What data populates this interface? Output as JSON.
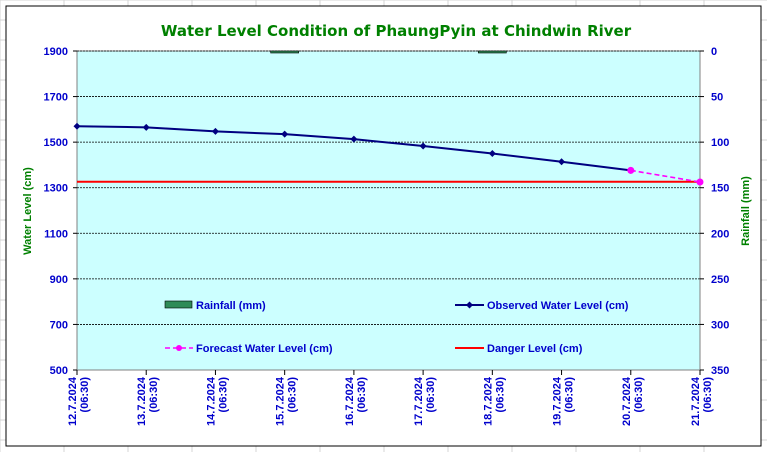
{
  "chart_data": {
    "type": "line",
    "title": "Water Level Condition of PhaungPyin at Chindwin River",
    "ylabel": "Water Level (cm)",
    "y2label": "Rainfall (mm)",
    "ylim": [
      500,
      1900
    ],
    "y2lim": [
      0,
      350
    ],
    "y2_inverted": true,
    "yticks": [
      500,
      700,
      900,
      1100,
      1300,
      1500,
      1700,
      1900
    ],
    "y2ticks": [
      0,
      50,
      100,
      150,
      200,
      250,
      300,
      350
    ],
    "categories": [
      {
        "date": "12.7.2024",
        "time": "(06:30)"
      },
      {
        "date": "13.7.2024",
        "time": "(06:30)"
      },
      {
        "date": "14.7.2024",
        "time": "(06:30)"
      },
      {
        "date": "15.7.2024",
        "time": "(06:30)"
      },
      {
        "date": "16.7.2024",
        "time": "(06:30)"
      },
      {
        "date": "17.7.2024",
        "time": "(06:30)"
      },
      {
        "date": "18.7.2024",
        "time": "(06:30)"
      },
      {
        "date": "19.7.2024",
        "time": "(06:30)"
      },
      {
        "date": "20.7.2024",
        "time": "(06:30)"
      },
      {
        "date": "21.7.2024",
        "time": "(06:30)"
      }
    ],
    "series": [
      {
        "name": "Rainfall (mm)",
        "kind": "bar",
        "axis": "y2",
        "color": "#2e8b57",
        "values": [
          0,
          0,
          0,
          2,
          0,
          0,
          2,
          0,
          0,
          null
        ]
      },
      {
        "name": "Observed Water Level (cm)",
        "kind": "line",
        "axis": "y",
        "color": "#000080",
        "values": [
          1570,
          1565,
          1547,
          1535,
          1513,
          1483,
          1450,
          1414,
          1376,
          null
        ]
      },
      {
        "name": "Forecast Water Level (cm)",
        "kind": "dashed-line",
        "axis": "y",
        "color": "#ff00ff",
        "values": [
          null,
          null,
          null,
          null,
          null,
          null,
          null,
          null,
          1376,
          1325
        ]
      },
      {
        "name": "Danger Level (cm)",
        "kind": "hline",
        "axis": "y",
        "color": "#ff0000",
        "value": 1326
      }
    ],
    "grid": true,
    "legend_position": "inside-bottom",
    "plot_background": "#ccffff"
  }
}
